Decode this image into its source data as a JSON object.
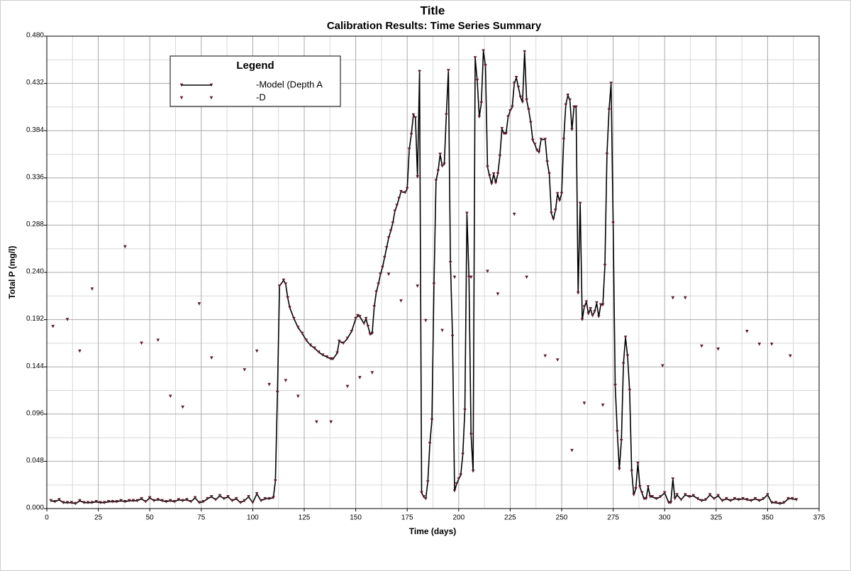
{
  "chart_data": {
    "type": "line",
    "title": "Title",
    "subtitle": "Calibration Results: Time Series Summary",
    "xlabel": "Time (days)",
    "ylabel": "Total P (mg/l)",
    "legend_title": "Legend",
    "legend": "upper left",
    "grid": true,
    "minor_grid": true,
    "xlim": [
      0,
      375
    ],
    "xticks": [
      0,
      25,
      50,
      75,
      100,
      125,
      150,
      175,
      200,
      225,
      250,
      275,
      300,
      325,
      350,
      375
    ],
    "ylim": [
      0,
      0.48
    ],
    "yticks": [
      {
        "value": 0,
        "label": "0.000"
      },
      {
        "value": 0.048,
        "label": "0.048"
      },
      {
        "value": 0.096,
        "label": "0.096"
      },
      {
        "value": 0.144,
        "label": "0.144"
      },
      {
        "value": 0.192,
        "label": "0.192"
      },
      {
        "value": 0.24,
        "label": "0.240"
      },
      {
        "value": 0.288,
        "label": "0.288"
      },
      {
        "value": 0.336,
        "label": "0.336"
      },
      {
        "value": 0.384,
        "label": "0.384"
      },
      {
        "value": 0.432,
        "label": "0.432"
      },
      {
        "value": 0.48,
        "label": "0.480"
      }
    ],
    "series": [
      {
        "name": "-Model (Depth A",
        "color": "#000000",
        "marker_color": "#5a1a2a",
        "line": true,
        "x": [
          2,
          4,
          6,
          8,
          10,
          12,
          14,
          16,
          18,
          20,
          22,
          24,
          26,
          28,
          30,
          32,
          34,
          36,
          38,
          40,
          42,
          44,
          46,
          48,
          50,
          52,
          54,
          56,
          58,
          60,
          62,
          64,
          66,
          68,
          70,
          72,
          74,
          76,
          78,
          80,
          82,
          84,
          86,
          88,
          90,
          92,
          94,
          96,
          98,
          100,
          102,
          104,
          106,
          108,
          110,
          111,
          112,
          113,
          115,
          116,
          117,
          118,
          120,
          122,
          124,
          126,
          128,
          130,
          132,
          134,
          136,
          138,
          139,
          141,
          142,
          144,
          146,
          148,
          150,
          151,
          152,
          154,
          155,
          156,
          157,
          158,
          159,
          160,
          161,
          162,
          163,
          164,
          165,
          166,
          167,
          168,
          169,
          170,
          171,
          172,
          174,
          175,
          176,
          177,
          178,
          179,
          180,
          181,
          182,
          183,
          184,
          185,
          186,
          187,
          188,
          189,
          190,
          191,
          192,
          193,
          194,
          195,
          196,
          197,
          198,
          199,
          200,
          201,
          202,
          203,
          204,
          205,
          206,
          207,
          208,
          209,
          210,
          211,
          212,
          213,
          214,
          215,
          216,
          217,
          218,
          219,
          220,
          221,
          222,
          223,
          224,
          225,
          226,
          227,
          228,
          229,
          230,
          231,
          232,
          233,
          234,
          235,
          236,
          237,
          238,
          239,
          240,
          242,
          243,
          244,
          245,
          246,
          247,
          248,
          249,
          250,
          251,
          252,
          253,
          254,
          255,
          256,
          257,
          258,
          259,
          260,
          261,
          262,
          263,
          264,
          265,
          266,
          267,
          268,
          269,
          270,
          271,
          272,
          273,
          274,
          275,
          276,
          277,
          278,
          279,
          280,
          281,
          282,
          283,
          284,
          285,
          286,
          287,
          288,
          289,
          290,
          291,
          292,
          293,
          294,
          296,
          298,
          300,
          302,
          303,
          304,
          305,
          306,
          308,
          310,
          312,
          314,
          316,
          318,
          320,
          322,
          324,
          326,
          328,
          330,
          332,
          334,
          336,
          338,
          340,
          342,
          344,
          346,
          348,
          350,
          352,
          354,
          356,
          358,
          360,
          362,
          364
        ],
        "values": [
          0.008,
          0.007,
          0.009,
          0.006,
          0.006,
          0.006,
          0.005,
          0.008,
          0.006,
          0.006,
          0.006,
          0.007,
          0.006,
          0.006,
          0.007,
          0.007,
          0.007,
          0.008,
          0.007,
          0.008,
          0.008,
          0.008,
          0.01,
          0.007,
          0.011,
          0.008,
          0.009,
          0.008,
          0.007,
          0.008,
          0.007,
          0.009,
          0.008,
          0.009,
          0.007,
          0.011,
          0.006,
          0.007,
          0.01,
          0.012,
          0.009,
          0.013,
          0.01,
          0.012,
          0.008,
          0.01,
          0.006,
          0.008,
          0.012,
          0.006,
          0.015,
          0.008,
          0.01,
          0.01,
          0.011,
          0.028,
          0.118,
          0.226,
          0.232,
          0.228,
          0.214,
          0.204,
          0.193,
          0.184,
          0.178,
          0.171,
          0.166,
          0.163,
          0.159,
          0.156,
          0.154,
          0.152,
          0.152,
          0.158,
          0.17,
          0.168,
          0.173,
          0.18,
          0.193,
          0.196,
          0.195,
          0.188,
          0.193,
          0.185,
          0.177,
          0.178,
          0.205,
          0.22,
          0.228,
          0.238,
          0.245,
          0.255,
          0.265,
          0.275,
          0.282,
          0.29,
          0.302,
          0.308,
          0.315,
          0.322,
          0.321,
          0.325,
          0.365,
          0.38,
          0.4,
          0.397,
          0.337,
          0.444,
          0.016,
          0.012,
          0.01,
          0.027,
          0.066,
          0.09,
          0.228,
          0.333,
          0.343,
          0.36,
          0.348,
          0.35,
          0.4,
          0.445,
          0.25,
          0.175,
          0.018,
          0.025,
          0.03,
          0.034,
          0.055,
          0.1,
          0.3,
          0.235,
          0.075,
          0.038,
          0.458,
          0.435,
          0.398,
          0.412,
          0.465,
          0.45,
          0.347,
          0.338,
          0.33,
          0.34,
          0.331,
          0.34,
          0.358,
          0.386,
          0.381,
          0.381,
          0.398,
          0.404,
          0.408,
          0.432,
          0.438,
          0.428,
          0.418,
          0.413,
          0.464,
          0.415,
          0.405,
          0.392,
          0.374,
          0.37,
          0.364,
          0.362,
          0.375,
          0.375,
          0.352,
          0.34,
          0.3,
          0.294,
          0.303,
          0.32,
          0.313,
          0.32,
          0.375,
          0.41,
          0.42,
          0.415,
          0.385,
          0.408,
          0.408,
          0.219,
          0.31,
          0.192,
          0.205,
          0.21,
          0.198,
          0.203,
          0.196,
          0.2,
          0.209,
          0.195,
          0.207,
          0.207,
          0.247,
          0.36,
          0.405,
          0.432,
          0.29,
          0.125,
          0.078,
          0.04,
          0.069,
          0.147,
          0.174,
          0.155,
          0.12,
          0.038,
          0.014,
          0.02,
          0.046,
          0.022,
          0.016,
          0.01,
          0.01,
          0.022,
          0.012,
          0.012,
          0.01,
          0.012,
          0.016,
          0.006,
          0.006,
          0.03,
          0.01,
          0.014,
          0.009,
          0.014,
          0.012,
          0.013,
          0.01,
          0.008,
          0.009,
          0.014,
          0.01,
          0.013,
          0.008,
          0.01,
          0.008,
          0.01,
          0.009,
          0.01,
          0.009,
          0.008,
          0.01,
          0.008,
          0.01,
          0.014,
          0.006,
          0.006,
          0.005,
          0.006,
          0.01,
          0.01,
          0.009
        ]
      },
      {
        "name": "-D",
        "color": "#5a1a2a",
        "marker_color": "#5a1a2a",
        "line": false,
        "x": [
          3,
          10,
          16,
          22,
          38,
          46,
          54,
          60,
          66,
          74,
          80,
          96,
          102,
          108,
          116,
          122,
          131,
          138,
          146,
          152,
          158,
          166,
          172,
          180,
          184,
          192,
          198,
          206,
          214,
          219,
          227,
          233,
          242,
          248,
          255,
          261,
          270,
          299,
          304,
          310,
          318,
          326,
          340,
          346,
          352,
          361
        ],
        "values": [
          0.185,
          0.192,
          0.16,
          0.223,
          0.266,
          0.168,
          0.171,
          0.114,
          0.103,
          0.208,
          0.153,
          0.141,
          0.16,
          0.126,
          0.13,
          0.114,
          0.088,
          0.088,
          0.124,
          0.133,
          0.138,
          0.238,
          0.211,
          0.226,
          0.191,
          0.181,
          0.235,
          0.235,
          0.241,
          0.218,
          0.299,
          0.235,
          0.155,
          0.151,
          0.059,
          0.107,
          0.105,
          0.145,
          0.214,
          0.214,
          0.165,
          0.162,
          0.18,
          0.167,
          0.167,
          0.155
        ]
      }
    ]
  }
}
